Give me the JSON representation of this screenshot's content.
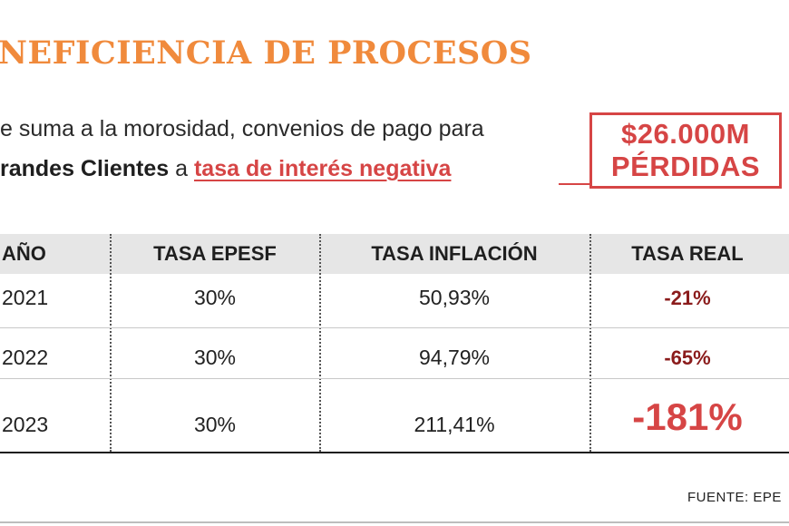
{
  "title": "NEFICIENCIA DE PROCESOS",
  "intro": {
    "line1": "e suma a la morosidad, convenios de pago para",
    "line2_bold": "randes Clientes",
    "line2_connector": " a ",
    "line2_link": "tasa de interés negativa"
  },
  "badge": {
    "amount": "$26.000M",
    "label": "PÉRDIDAS"
  },
  "table": {
    "headers": {
      "year": "AÑO",
      "rate_epesf": "TASA EPESF",
      "rate_inflation": "TASA INFLACIÓN",
      "rate_real": "TASA REAL"
    },
    "rows": [
      {
        "year": "2021",
        "rate_epesf": "30%",
        "rate_inflation": "50,93%",
        "rate_real": "-21%"
      },
      {
        "year": "2022",
        "rate_epesf": "30%",
        "rate_inflation": "94,79%",
        "rate_real": "-65%"
      },
      {
        "year": "2023",
        "rate_epesf": "30%",
        "rate_inflation": "211,41%",
        "rate_real": "-181%"
      }
    ]
  },
  "source": "FUENTE: EPE"
}
